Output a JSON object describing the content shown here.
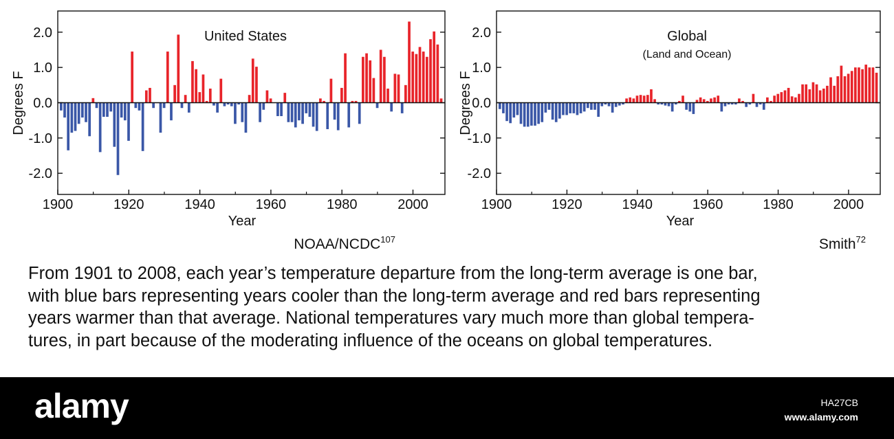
{
  "chart_data": [
    {
      "type": "bar",
      "title": "United States",
      "subtitle": "",
      "source": "NOAA/NCDC",
      "source_ref": "107",
      "xlabel": "Year",
      "ylabel": "Degrees F",
      "xlim": [
        1900,
        2009
      ],
      "ylim": [
        -2.6,
        2.6
      ],
      "xticks": [
        "1900",
        "1920",
        "1940",
        "1960",
        "1980",
        "2000"
      ],
      "yticks": [
        "2.0",
        "1.0",
        "0.0",
        "-1.0",
        "-2.0"
      ],
      "grid": false,
      "colors": {
        "positive": "#e8242a",
        "negative": "#3a57a7",
        "faded_positive": "#f1a3a3",
        "faded_negative": "#a9b6d9"
      },
      "years": [
        1901,
        1902,
        1903,
        1904,
        1905,
        1906,
        1907,
        1908,
        1909,
        1910,
        1911,
        1912,
        1913,
        1914,
        1915,
        1916,
        1917,
        1918,
        1919,
        1920,
        1921,
        1922,
        1923,
        1924,
        1925,
        1926,
        1927,
        1928,
        1929,
        1930,
        1931,
        1932,
        1933,
        1934,
        1935,
        1936,
        1937,
        1938,
        1939,
        1940,
        1941,
        1942,
        1943,
        1944,
        1945,
        1946,
        1947,
        1948,
        1949,
        1950,
        1951,
        1952,
        1953,
        1954,
        1955,
        1956,
        1957,
        1958,
        1959,
        1960,
        1961,
        1962,
        1963,
        1964,
        1965,
        1966,
        1967,
        1968,
        1969,
        1970,
        1971,
        1972,
        1973,
        1974,
        1975,
        1976,
        1977,
        1978,
        1979,
        1980,
        1981,
        1982,
        1983,
        1984,
        1985,
        1986,
        1987,
        1988,
        1989,
        1990,
        1991,
        1992,
        1993,
        1994,
        1995,
        1996,
        1997,
        1998,
        1999,
        2000,
        2001,
        2002,
        2003,
        2004,
        2005,
        2006,
        2007,
        2008
      ],
      "values": [
        -0.22,
        -0.42,
        -1.35,
        -0.85,
        -0.8,
        -0.6,
        -0.42,
        -0.55,
        -0.95,
        0.13,
        -0.15,
        -1.4,
        -0.4,
        -0.4,
        -0.25,
        -1.25,
        -2.05,
        -0.42,
        -0.5,
        -1.08,
        1.45,
        -0.15,
        -0.22,
        -1.37,
        0.35,
        0.42,
        -0.15,
        0.0,
        -0.85,
        -0.15,
        1.45,
        -0.5,
        0.5,
        1.93,
        -0.15,
        0.22,
        -0.28,
        1.18,
        0.95,
        0.3,
        0.8,
        0.05,
        0.4,
        -0.08,
        -0.28,
        0.68,
        -0.1,
        -0.05,
        -0.1,
        -0.6,
        -0.05,
        -0.55,
        -0.85,
        0.22,
        1.25,
        1.02,
        -0.55,
        -0.2,
        0.35,
        0.12,
        0.0,
        -0.38,
        -0.38,
        0.28,
        -0.55,
        -0.55,
        -0.7,
        -0.5,
        -0.6,
        -0.3,
        -0.4,
        -0.68,
        -0.8,
        0.12,
        0.05,
        -0.75,
        0.68,
        -0.48,
        -0.78,
        0.42,
        1.4,
        -0.7,
        0.05,
        0.05,
        -0.6,
        1.3,
        1.4,
        1.2,
        0.7,
        -0.15,
        1.5,
        1.3,
        0.4,
        -0.25,
        0.82,
        0.8,
        -0.3,
        0.5,
        2.3,
        1.45,
        1.38,
        1.58,
        1.45,
        1.3,
        1.8,
        2.02,
        1.65,
        0.12
      ]
    },
    {
      "type": "bar",
      "title": "Global",
      "subtitle": "(Land and Ocean)",
      "source": "Smith",
      "source_ref": "72",
      "xlabel": "Year",
      "ylabel": "Degrees F",
      "xlim": [
        1900,
        2009
      ],
      "ylim": [
        -2.6,
        2.6
      ],
      "xticks": [
        "1900",
        "1920",
        "1940",
        "1960",
        "1980",
        "2000"
      ],
      "yticks": [
        "2.0",
        "1.0",
        "0.0",
        "-1.0",
        "-2.0"
      ],
      "grid": false,
      "colors": {
        "positive": "#e8242a",
        "negative": "#3a57a7",
        "faded_positive": "#f1a3a3",
        "faded_negative": "#a9b6d9"
      },
      "years": [
        1901,
        1902,
        1903,
        1904,
        1905,
        1906,
        1907,
        1908,
        1909,
        1910,
        1911,
        1912,
        1913,
        1914,
        1915,
        1916,
        1917,
        1918,
        1919,
        1920,
        1921,
        1922,
        1923,
        1924,
        1925,
        1926,
        1927,
        1928,
        1929,
        1930,
        1931,
        1932,
        1933,
        1934,
        1935,
        1936,
        1937,
        1938,
        1939,
        1940,
        1941,
        1942,
        1943,
        1944,
        1945,
        1946,
        1947,
        1948,
        1949,
        1950,
        1951,
        1952,
        1953,
        1954,
        1955,
        1956,
        1957,
        1958,
        1959,
        1960,
        1961,
        1962,
        1963,
        1964,
        1965,
        1966,
        1967,
        1968,
        1969,
        1970,
        1971,
        1972,
        1973,
        1974,
        1975,
        1976,
        1977,
        1978,
        1979,
        1980,
        1981,
        1982,
        1983,
        1984,
        1985,
        1986,
        1987,
        1988,
        1989,
        1990,
        1991,
        1992,
        1993,
        1994,
        1995,
        1996,
        1997,
        1998,
        1999,
        2000,
        2001,
        2002,
        2003,
        2004,
        2005,
        2006,
        2007,
        2008
      ],
      "values": [
        -0.18,
        -0.3,
        -0.52,
        -0.58,
        -0.42,
        -0.35,
        -0.6,
        -0.68,
        -0.68,
        -0.65,
        -0.65,
        -0.6,
        -0.55,
        -0.28,
        -0.2,
        -0.48,
        -0.55,
        -0.45,
        -0.35,
        -0.35,
        -0.3,
        -0.3,
        -0.35,
        -0.3,
        -0.25,
        -0.15,
        -0.2,
        -0.2,
        -0.4,
        -0.1,
        -0.05,
        -0.1,
        -0.28,
        -0.12,
        -0.08,
        -0.05,
        0.12,
        0.15,
        0.12,
        0.2,
        0.22,
        0.2,
        0.22,
        0.38,
        0.1,
        -0.05,
        -0.05,
        -0.08,
        -0.1,
        -0.25,
        -0.05,
        0.05,
        0.2,
        -0.2,
        -0.25,
        -0.32,
        0.08,
        0.15,
        0.1,
        0.05,
        0.12,
        0.15,
        0.2,
        -0.25,
        -0.1,
        -0.05,
        -0.05,
        -0.05,
        0.12,
        0.05,
        -0.12,
        -0.05,
        0.25,
        -0.12,
        -0.05,
        -0.2,
        0.15,
        0.05,
        0.2,
        0.25,
        0.3,
        0.35,
        0.42,
        0.18,
        0.15,
        0.25,
        0.52,
        0.52,
        0.38,
        0.58,
        0.52,
        0.35,
        0.4,
        0.48,
        0.72,
        0.48,
        0.75,
        1.05,
        0.75,
        0.82,
        0.9,
        1.0,
        1.0,
        0.95,
        1.08,
        1.0,
        1.0,
        0.85
      ]
    }
  ],
  "caption": {
    "lines": [
      "From 1901 to 2008, each year’s temperature departure from the long-term average is one bar,",
      "with blue bars representing years cooler than the long-term average and red bars representing",
      "years warmer than that average. National temperatures vary much more than global tempera-",
      "tures, in part because of the moderating influence of the oceans on global temperatures."
    ]
  },
  "footer": {
    "logo": "alamy",
    "image_id": "HA27CB",
    "url": "www.alamy.com"
  }
}
